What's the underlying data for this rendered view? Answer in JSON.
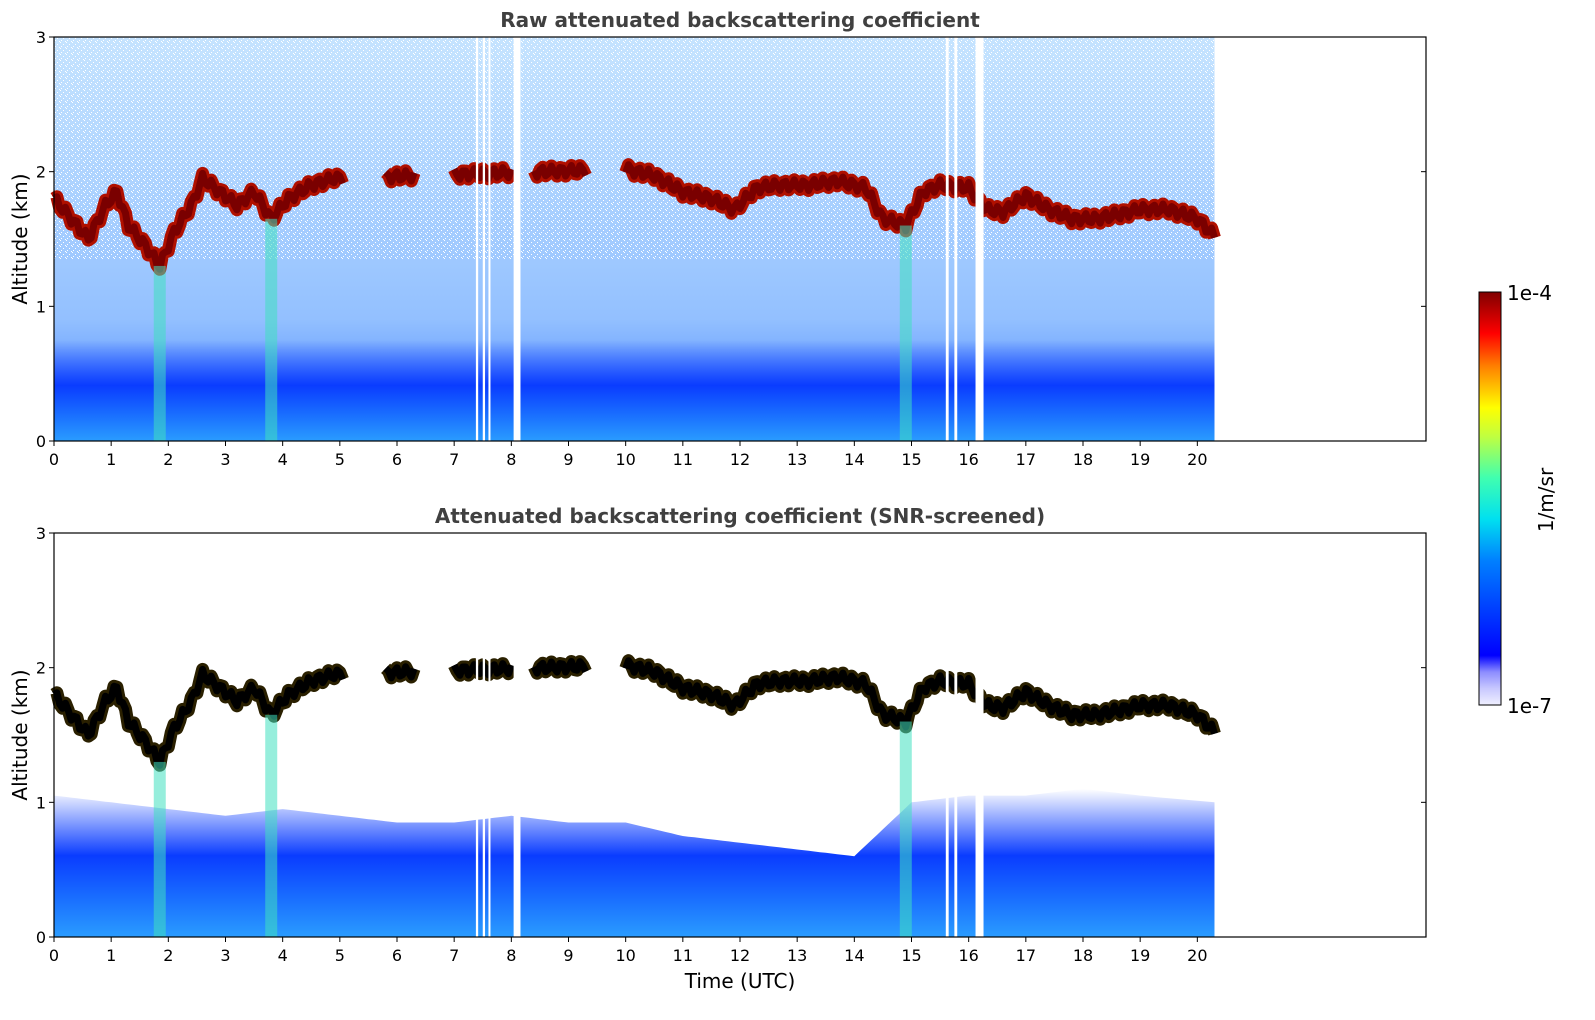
{
  "chart_data": [
    {
      "type": "heatmap",
      "title": "Raw attenuated backscattering coefficient",
      "ylabel": "Altitude (km)",
      "xlabel": "",
      "xlim": [
        0,
        24
      ],
      "ylim": [
        0,
        3
      ],
      "xticks": [
        "0",
        "1",
        "2",
        "3",
        "4",
        "5",
        "6",
        "7",
        "8",
        "9",
        "10",
        "11",
        "12",
        "13",
        "14",
        "15",
        "16",
        "17",
        "18",
        "19",
        "20"
      ],
      "yticks": [
        "0",
        "1",
        "2",
        "3"
      ],
      "data_end_hour": 20.3,
      "data_gaps_hours": [
        [
          7.38,
          7.42
        ],
        [
          7.5,
          7.54
        ],
        [
          7.6,
          7.63
        ],
        [
          8.04,
          8.16
        ],
        [
          15.6,
          15.65
        ],
        [
          15.75,
          15.8
        ],
        [
          16.12,
          16.26
        ]
      ],
      "cloud_base_km": [
        [
          0,
          1.8
        ],
        [
          0.3,
          1.65
        ],
        [
          0.6,
          1.5
        ],
        [
          0.9,
          1.75
        ],
        [
          1.1,
          1.85
        ],
        [
          1.3,
          1.6
        ],
        [
          1.6,
          1.45
        ],
        [
          1.85,
          1.3
        ],
        [
          2.1,
          1.55
        ],
        [
          2.4,
          1.75
        ],
        [
          2.6,
          1.95
        ],
        [
          2.9,
          1.85
        ],
        [
          3.2,
          1.75
        ],
        [
          3.5,
          1.85
        ],
        [
          3.8,
          1.65
        ],
        [
          4.1,
          1.8
        ],
        [
          4.5,
          1.9
        ],
        [
          4.9,
          1.95
        ],
        [
          10.0,
          2.02
        ],
        [
          10.5,
          1.97
        ],
        [
          11.0,
          1.85
        ],
        [
          11.5,
          1.8
        ],
        [
          11.9,
          1.72
        ],
        [
          12.3,
          1.88
        ],
        [
          12.7,
          1.9
        ],
        [
          13.2,
          1.9
        ],
        [
          13.7,
          1.93
        ],
        [
          14.2,
          1.88
        ],
        [
          14.5,
          1.65
        ],
        [
          14.9,
          1.6
        ],
        [
          15.2,
          1.85
        ],
        [
          15.5,
          1.9
        ],
        [
          16.0,
          1.88
        ],
        [
          16.3,
          1.72
        ],
        [
          16.6,
          1.7
        ],
        [
          17.0,
          1.82
        ],
        [
          17.4,
          1.72
        ],
        [
          17.8,
          1.65
        ],
        [
          18.2,
          1.65
        ],
        [
          18.6,
          1.68
        ],
        [
          19.0,
          1.72
        ],
        [
          19.5,
          1.72
        ],
        [
          20.0,
          1.65
        ],
        [
          20.3,
          1.52
        ]
      ],
      "colorbar": {
        "min_label": "1e-7",
        "max_label": "1e-4",
        "label": "1/m/sr",
        "cmap": "jet"
      }
    },
    {
      "type": "heatmap",
      "title": "Attenuated backscattering coefficient (SNR-screened)",
      "ylabel": "Altitude (km)",
      "xlabel": "Time (UTC)",
      "xlim": [
        0,
        24
      ],
      "ylim": [
        0,
        3
      ],
      "xticks": [
        "0",
        "1",
        "2",
        "3",
        "4",
        "5",
        "6",
        "7",
        "8",
        "9",
        "10",
        "11",
        "12",
        "13",
        "14",
        "15",
        "16",
        "17",
        "18",
        "19",
        "20"
      ],
      "yticks": [
        "0",
        "1",
        "2",
        "3"
      ],
      "data_end_hour": 20.3,
      "screened_top_km": [
        [
          0,
          1.05
        ],
        [
          1,
          1.0
        ],
        [
          2,
          0.95
        ],
        [
          3,
          0.9
        ],
        [
          4,
          0.95
        ],
        [
          5,
          0.9
        ],
        [
          6,
          0.85
        ],
        [
          7,
          0.85
        ],
        [
          8,
          0.9
        ],
        [
          9,
          0.85
        ],
        [
          10,
          0.85
        ],
        [
          11,
          0.75
        ],
        [
          12,
          0.7
        ],
        [
          13,
          0.65
        ],
        [
          14,
          0.6
        ],
        [
          15,
          1.0
        ],
        [
          16,
          1.05
        ],
        [
          17,
          1.05
        ],
        [
          18,
          1.1
        ],
        [
          19,
          1.05
        ],
        [
          20.3,
          1.0
        ]
      ]
    }
  ]
}
